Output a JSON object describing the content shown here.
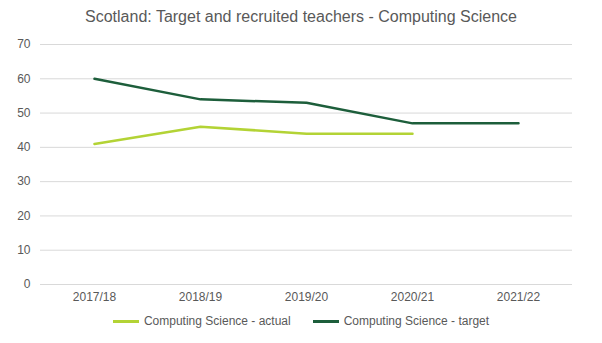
{
  "chart_data": {
    "type": "line",
    "title": "Scotland: Target and recruited teachers - Computing Science",
    "categories": [
      "2017/18",
      "2018/19",
      "2019/20",
      "2020/21",
      "2021/22"
    ],
    "series": [
      {
        "name": "Computing Science - actual",
        "color": "#b3d335",
        "values": [
          41,
          46,
          44,
          44,
          null
        ]
      },
      {
        "name": "Computing Science - target",
        "color": "#1d5e3b",
        "values": [
          60,
          54,
          53,
          47,
          47
        ]
      }
    ],
    "ylim": [
      0,
      70
    ],
    "yticks": [
      0,
      10,
      20,
      30,
      40,
      50,
      60,
      70
    ],
    "grid": true,
    "legend": "bottom"
  }
}
